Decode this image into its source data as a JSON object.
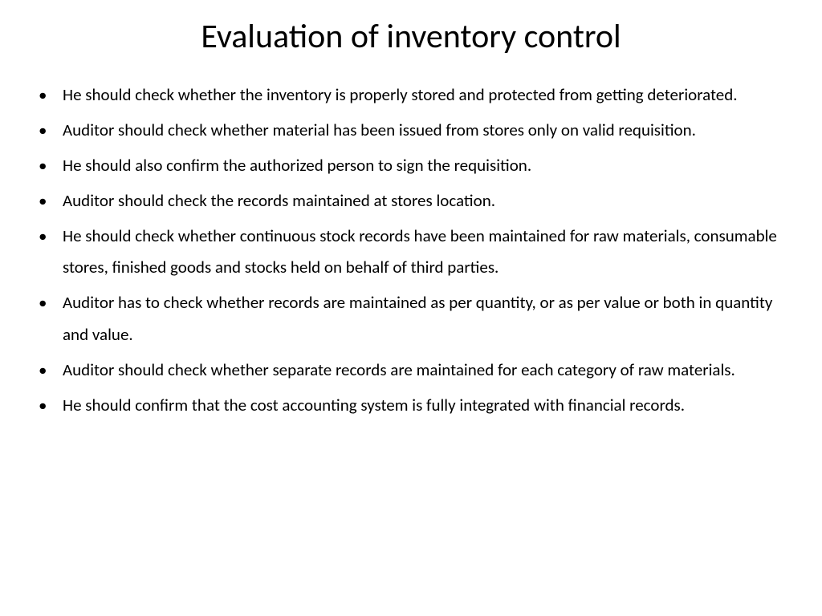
{
  "slide": {
    "title": "Evaluation of inventory control",
    "title_fontsize": 42,
    "title_color": "#000000",
    "background_color": "#ffffff",
    "body_fontsize": 21,
    "body_color": "#000000",
    "line_height": 1.9,
    "bullets": [
      "He should check whether the inventory is properly stored and protected from getting deteriorated.",
      "Auditor should check whether material has been issued from stores only on valid requisition.",
      "He should also confirm the authorized person to sign the requisition.",
      "Auditor should check the records maintained at stores location.",
      "He should check whether continuous stock records have been maintained for raw materials, consumable stores, finished goods and stocks held on behalf of third parties.",
      "Auditor has to check whether records are maintained as per quantity, or as per value or both in quantity and value.",
      "Auditor should check whether separate records are maintained for each category of raw materials.",
      "He should confirm that the cost accounting system is fully integrated with financial records."
    ]
  }
}
